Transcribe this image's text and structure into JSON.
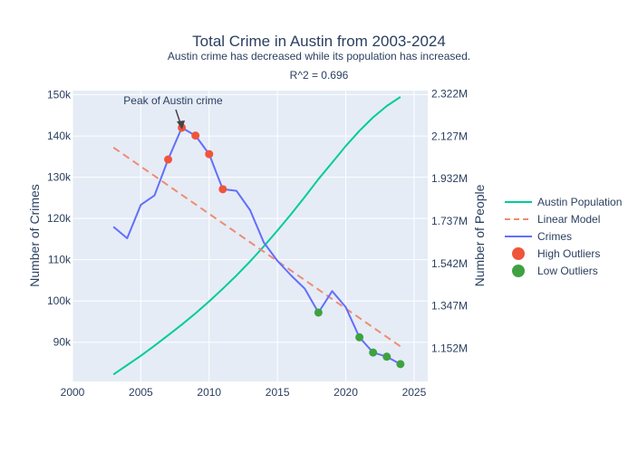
{
  "chart_data": {
    "type": "line",
    "title": "Total Crime in Austin from 2003-2024",
    "subtitle": "Austin crime has decreased while its population has increased.",
    "annotation_r2": "R^2 = 0.696",
    "annotation_peak": "Peak of Austin crime",
    "xlabel": "",
    "ylabel": "Number of Crimes",
    "y2label": "Number of People",
    "xlim": [
      2000,
      2026
    ],
    "ylim": [
      80500,
      151000
    ],
    "y2lim": [
      1000000,
      2337000
    ],
    "x_ticks": [
      2000,
      2005,
      2010,
      2015,
      2020,
      2025
    ],
    "y_ticks": [
      {
        "value": 90000,
        "label": "90k"
      },
      {
        "value": 100000,
        "label": "100k"
      },
      {
        "value": 110000,
        "label": "110k"
      },
      {
        "value": 120000,
        "label": "120k"
      },
      {
        "value": 130000,
        "label": "130k"
      },
      {
        "value": 140000,
        "label": "140k"
      },
      {
        "value": 150000,
        "label": "150k"
      }
    ],
    "y2_ticks": [
      {
        "value": 1152000,
        "label": "1.152M"
      },
      {
        "value": 1347000,
        "label": "1.347M"
      },
      {
        "value": 1542000,
        "label": "1.542M"
      },
      {
        "value": 1737000,
        "label": "1.737M"
      },
      {
        "value": 1932000,
        "label": "1.932M"
      },
      {
        "value": 2127000,
        "label": "2.127M"
      },
      {
        "value": 2322000,
        "label": "2.322M"
      }
    ],
    "grid": true,
    "legend_position": "right",
    "series": [
      {
        "name": "Crimes",
        "kind": "line",
        "color": "#636efa",
        "x": [
          2003,
          2004,
          2005,
          2006,
          2007,
          2008,
          2009,
          2010,
          2011,
          2012,
          2013,
          2014,
          2015,
          2016,
          2017,
          2018,
          2019,
          2020,
          2021,
          2022,
          2023,
          2024
        ],
        "y": [
          118000,
          115200,
          123300,
          125600,
          134300,
          142000,
          140100,
          135600,
          127100,
          126700,
          122000,
          114200,
          109700,
          106200,
          103000,
          97200,
          102400,
          98500,
          91200,
          87500,
          86500,
          84700
        ]
      },
      {
        "name": "Linear Model",
        "kind": "dash",
        "color": "#ef8c73",
        "x": [
          2003,
          2024
        ],
        "y": [
          137200,
          89000
        ]
      },
      {
        "name": "Austin Population",
        "kind": "line",
        "axis": "y2",
        "color": "#00cc96",
        "x": [
          2003,
          2004,
          2005,
          2006,
          2007,
          2008,
          2009,
          2010,
          2011,
          2012,
          2013,
          2014,
          2015,
          2016,
          2017,
          2018,
          2019,
          2020,
          2021,
          2022,
          2023,
          2024
        ],
        "y": [
          1032000,
          1075000,
          1118000,
          1164000,
          1212000,
          1261000,
          1313000,
          1368000,
          1426000,
          1487000,
          1552000,
          1621000,
          1694000,
          1769000,
          1848000,
          1930000,
          2006000,
          2082000,
          2152000,
          2214000,
          2266000,
          2308000
        ]
      },
      {
        "name": "High Outliers",
        "kind": "marker",
        "color": "#ef553b",
        "x": [
          2007,
          2008,
          2009,
          2010,
          2011
        ],
        "y": [
          134300,
          142000,
          140100,
          135600,
          127100
        ]
      },
      {
        "name": "Low Outliers",
        "kind": "marker",
        "color": "#3fa142",
        "x": [
          2018,
          2021,
          2022,
          2023,
          2024
        ],
        "y": [
          97200,
          91200,
          87500,
          86500,
          84700
        ]
      }
    ]
  }
}
